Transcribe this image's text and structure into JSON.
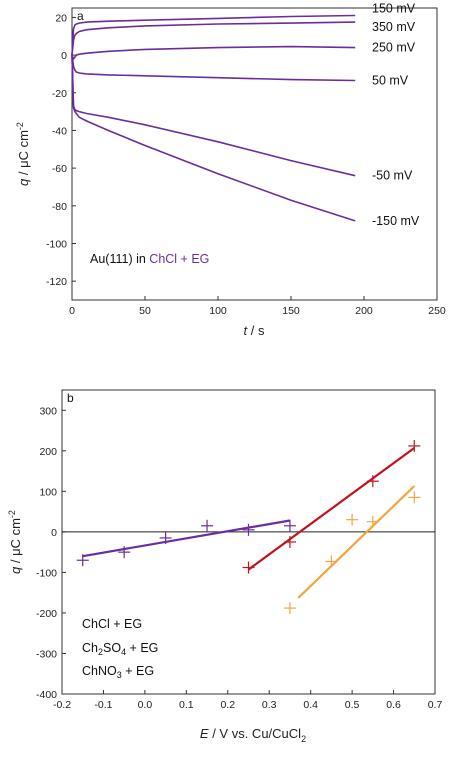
{
  "chart_data": [
    {
      "type": "line",
      "panel": "a",
      "xlabel_italic": "t",
      "xlabel_unit": " / s",
      "ylabel_italic": "q",
      "ylabel_unit": " / μC cm",
      "ylabel_sup": "-2",
      "xlim": [
        0,
        250
      ],
      "ylim": [
        -130,
        25
      ],
      "xticks": [
        0,
        50,
        100,
        150,
        200,
        250
      ],
      "yticks": [
        20,
        0,
        -20,
        -40,
        -60,
        -80,
        -100,
        -120
      ],
      "color": "#6a2d9f",
      "annotation_prefix": "Au(111) in ",
      "annotation_highlight": "ChCl + EG",
      "series": [
        {
          "name": "150 mV",
          "x": [
            0,
            1,
            2,
            3,
            5,
            10,
            25,
            50,
            100,
            150,
            194
          ],
          "y": [
            0,
            14,
            16,
            16.5,
            17,
            17.5,
            18,
            18.5,
            19.5,
            20.5,
            21
          ]
        },
        {
          "name": "350 mV",
          "x": [
            0,
            1,
            2,
            3,
            5,
            10,
            25,
            50,
            100,
            150,
            194
          ],
          "y": [
            0,
            8,
            10.5,
            11.5,
            12.5,
            13.5,
            14.5,
            15.5,
            16.5,
            17,
            17.5
          ]
        },
        {
          "name": "250 mV",
          "x": [
            0,
            1,
            2,
            3,
            5,
            10,
            25,
            50,
            100,
            150,
            194
          ],
          "y": [
            0,
            -2,
            -1,
            0,
            0.5,
            1,
            2,
            3,
            4,
            4.5,
            4
          ]
        },
        {
          "name": "50 mV",
          "x": [
            0,
            1,
            2,
            3,
            5,
            10,
            25,
            50,
            100,
            150,
            194
          ],
          "y": [
            0,
            -6,
            -8,
            -9,
            -9.5,
            -10,
            -10.5,
            -11,
            -12,
            -13,
            -13.5
          ]
        },
        {
          "name": "-50 mV",
          "x": [
            0,
            1,
            2,
            3,
            5,
            10,
            25,
            50,
            100,
            150,
            194
          ],
          "y": [
            0,
            -27,
            -29,
            -29.5,
            -30,
            -31,
            -33,
            -37,
            -46,
            -56,
            -64
          ]
        },
        {
          "name": "-150 mV",
          "x": [
            0,
            1,
            2,
            3,
            5,
            10,
            25,
            50,
            100,
            150,
            194
          ],
          "y": [
            0,
            -28,
            -30,
            -31,
            -33,
            -35,
            -40,
            -48,
            -63,
            -77,
            -88
          ]
        }
      ]
    },
    {
      "type": "scatter",
      "panel": "b",
      "xlabel_italic": "E",
      "xlabel_unit": " / V vs. Cu/CuCl",
      "xlabel_sub": "2",
      "ylabel_italic": "q",
      "ylabel_unit": " / μC cm",
      "ylabel_sup": "-2",
      "xlim": [
        -0.2,
        0.7
      ],
      "ylim": [
        -400,
        350
      ],
      "xticks": [
        -0.2,
        -0.1,
        0.0,
        0.1,
        0.2,
        0.3,
        0.4,
        0.5,
        0.6,
        0.7
      ],
      "yticks": [
        300,
        200,
        100,
        0,
        -100,
        -200,
        -300,
        -400
      ],
      "series": [
        {
          "name": "ChCl + EG",
          "color": "#6a2d9f",
          "x": [
            -0.15,
            -0.05,
            0.05,
            0.15,
            0.25,
            0.35
          ],
          "y": [
            -70,
            -50,
            -15,
            15,
            5,
            15
          ],
          "fit": {
            "x": [
              -0.15,
              0.35
            ],
            "y": [
              -60,
              28
            ]
          }
        },
        {
          "name_base": "Ch",
          "name_sub": "2",
          "name_rest": "SO",
          "name_sub2": "4",
          "name_tail": " + EG",
          "color": "#c0141c",
          "x": [
            0.25,
            0.35,
            0.55,
            0.65
          ],
          "y": [
            -88,
            -25,
            125,
            212
          ],
          "fit": {
            "x": [
              0.25,
              0.65
            ],
            "y": [
              -93,
              207
            ]
          }
        },
        {
          "name_base": "ChNO",
          "name_sub": "3",
          "name_rest": "",
          "name_sub2": "",
          "name_tail": " + EG",
          "color": "#f0a640",
          "x": [
            0.35,
            0.45,
            0.5,
            0.55,
            0.65
          ],
          "y": [
            -188,
            -73,
            30,
            25,
            85
          ],
          "fit": {
            "x": [
              0.37,
              0.65
            ],
            "y": [
              -163,
              113
            ]
          }
        }
      ]
    }
  ]
}
